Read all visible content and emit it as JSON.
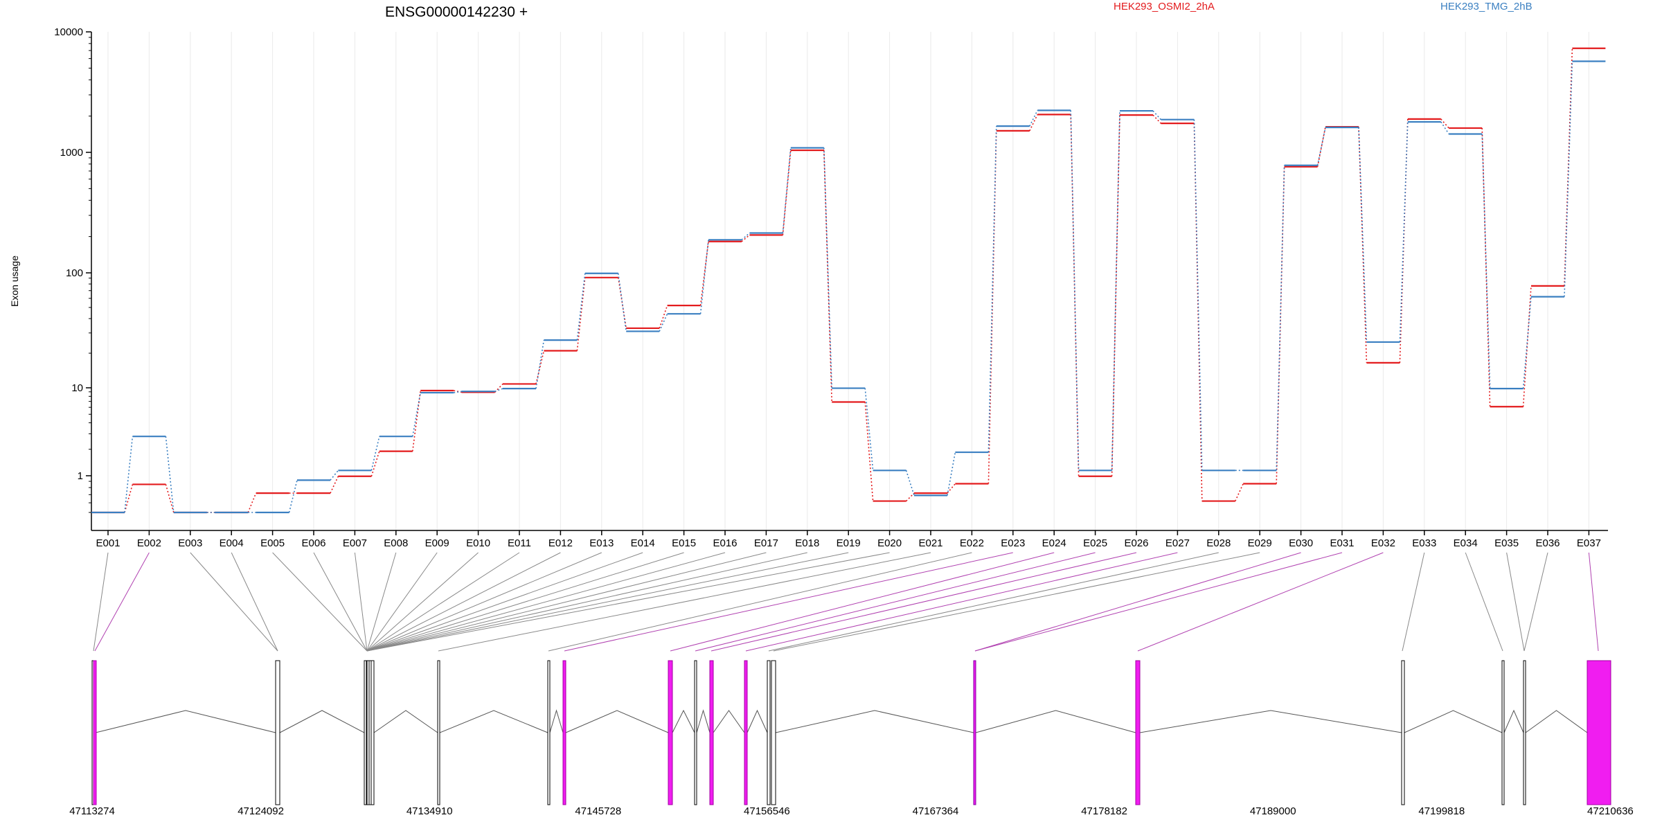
{
  "chart_data": {
    "type": "line",
    "title": "ENSG00000142230 +",
    "ylabel": "Exon usage",
    "yscale": "log",
    "ylim": [
      0.5,
      10000
    ],
    "ytick_labels": [
      "1",
      "10",
      "100",
      "1000",
      "10000"
    ],
    "yticks": [
      1,
      10,
      100,
      1000,
      10000
    ],
    "categories": [
      "E001",
      "E002",
      "E003",
      "E004",
      "E005",
      "E006",
      "E007",
      "E008",
      "E009",
      "E010",
      "E011",
      "E012",
      "E013",
      "E014",
      "E015",
      "E016",
      "E017",
      "E018",
      "E019",
      "E020",
      "E021",
      "E022",
      "E023",
      "E024",
      "E025",
      "E026",
      "E027",
      "E028",
      "E029",
      "E030",
      "E031",
      "E032",
      "E033",
      "E034",
      "E035",
      "E036",
      "E037"
    ],
    "series": [
      {
        "name": "HEK293_OSMI2_2hA",
        "color": "#e31a1c",
        "values": [
          0.5,
          0.85,
          0.5,
          0.5,
          0.72,
          0.72,
          0.99,
          1.9,
          9.3,
          8.9,
          10.8,
          21,
          91,
          33,
          52,
          182,
          206,
          1040,
          6.9,
          0.62,
          0.72,
          0.86,
          1510,
          2060,
          0.99,
          2040,
          1740,
          0.62,
          0.86,
          760,
          1630,
          16.5,
          1890,
          1590,
          6.1,
          77,
          7300
        ]
      },
      {
        "name": "HEK293_TMG_2hB",
        "color": "#3a7fc1",
        "values": [
          0.5,
          2.8,
          0.5,
          0.5,
          0.5,
          0.92,
          1.15,
          2.8,
          8.8,
          9.1,
          9.8,
          26,
          99,
          31,
          44,
          188,
          214,
          1090,
          9.9,
          1.15,
          0.69,
          1.85,
          1650,
          2230,
          1.15,
          2210,
          1870,
          1.15,
          1.15,
          780,
          1610,
          25,
          1790,
          1420,
          9.8,
          62,
          5700
        ]
      }
    ],
    "gene_model": {
      "genomic_ticks": [
        "47113274",
        "47124092",
        "47134910",
        "47145728",
        "47156546",
        "47167364",
        "47178182",
        "47189000",
        "47199818",
        "47210636"
      ],
      "exon_colors": {
        "significant": "#f01df0",
        "constitutive": "#ffffff",
        "outline": "#000000"
      }
    },
    "grid": true,
    "legend": "top"
  }
}
